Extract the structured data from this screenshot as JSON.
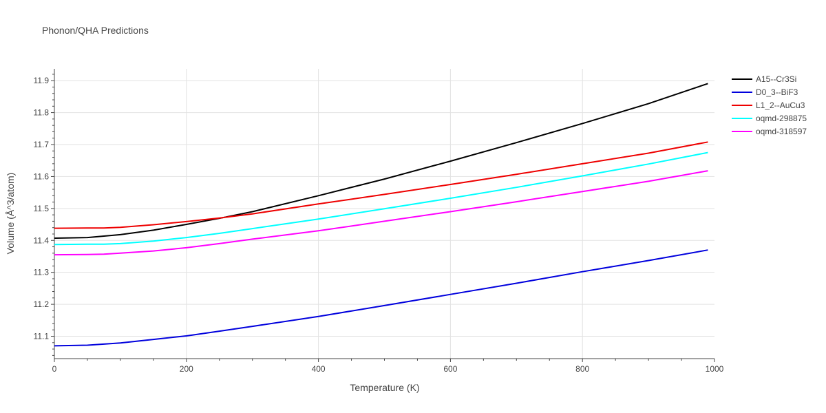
{
  "chart_data": {
    "type": "line",
    "title": "Phonon/QHA Predictions",
    "xlabel": "Temperature (K)",
    "ylabel": "Volume (Å^3/atom)",
    "xlim": [
      0,
      1000
    ],
    "ylim": [
      11.03,
      11.937
    ],
    "xticks": [
      0,
      200,
      400,
      600,
      800,
      1000
    ],
    "yticks": [
      11.1,
      11.2,
      11.3,
      11.4,
      11.5,
      11.6,
      11.7,
      11.8,
      11.9
    ],
    "grid": true,
    "legend": "top-right",
    "series": [
      {
        "name": "A15--Cr3Si",
        "color": "#000000",
        "x": [
          0,
          50,
          100,
          150,
          200,
          250,
          300,
          400,
          500,
          600,
          700,
          800,
          900,
          990
        ],
        "y": [
          11.407,
          11.409,
          11.418,
          11.432,
          11.45,
          11.469,
          11.49,
          11.54,
          11.592,
          11.648,
          11.706,
          11.766,
          11.828,
          11.891
        ]
      },
      {
        "name": "D0_3--BiF3",
        "color": "#0000dd",
        "x": [
          0,
          50,
          100,
          150,
          200,
          250,
          300,
          400,
          500,
          600,
          700,
          800,
          900,
          990
        ],
        "y": [
          11.07,
          11.072,
          11.079,
          11.09,
          11.101,
          11.116,
          11.131,
          11.162,
          11.196,
          11.231,
          11.266,
          11.302,
          11.337,
          11.37
        ]
      },
      {
        "name": "L1_2--AuCu3",
        "color": "#ee0000",
        "x": [
          0,
          50,
          75,
          100,
          150,
          200,
          250,
          300,
          400,
          500,
          600,
          700,
          800,
          900,
          990
        ],
        "y": [
          11.438,
          11.439,
          11.439,
          11.441,
          11.449,
          11.459,
          11.47,
          11.483,
          11.514,
          11.544,
          11.575,
          11.607,
          11.64,
          11.673,
          11.708
        ]
      },
      {
        "name": "oqmd-298875",
        "color": "#00ffff",
        "x": [
          0,
          50,
          75,
          100,
          150,
          200,
          250,
          300,
          400,
          500,
          600,
          700,
          800,
          900,
          990
        ],
        "y": [
          11.387,
          11.388,
          11.388,
          11.39,
          11.398,
          11.409,
          11.422,
          11.437,
          11.467,
          11.499,
          11.532,
          11.566,
          11.602,
          11.639,
          11.675
        ]
      },
      {
        "name": "oqmd-318597",
        "color": "#ff00ff",
        "x": [
          0,
          50,
          75,
          100,
          150,
          200,
          250,
          300,
          400,
          500,
          600,
          700,
          800,
          900,
          990
        ],
        "y": [
          11.355,
          11.356,
          11.357,
          11.36,
          11.367,
          11.377,
          11.39,
          11.404,
          11.43,
          11.46,
          11.49,
          11.521,
          11.553,
          11.585,
          11.618
        ]
      }
    ]
  }
}
